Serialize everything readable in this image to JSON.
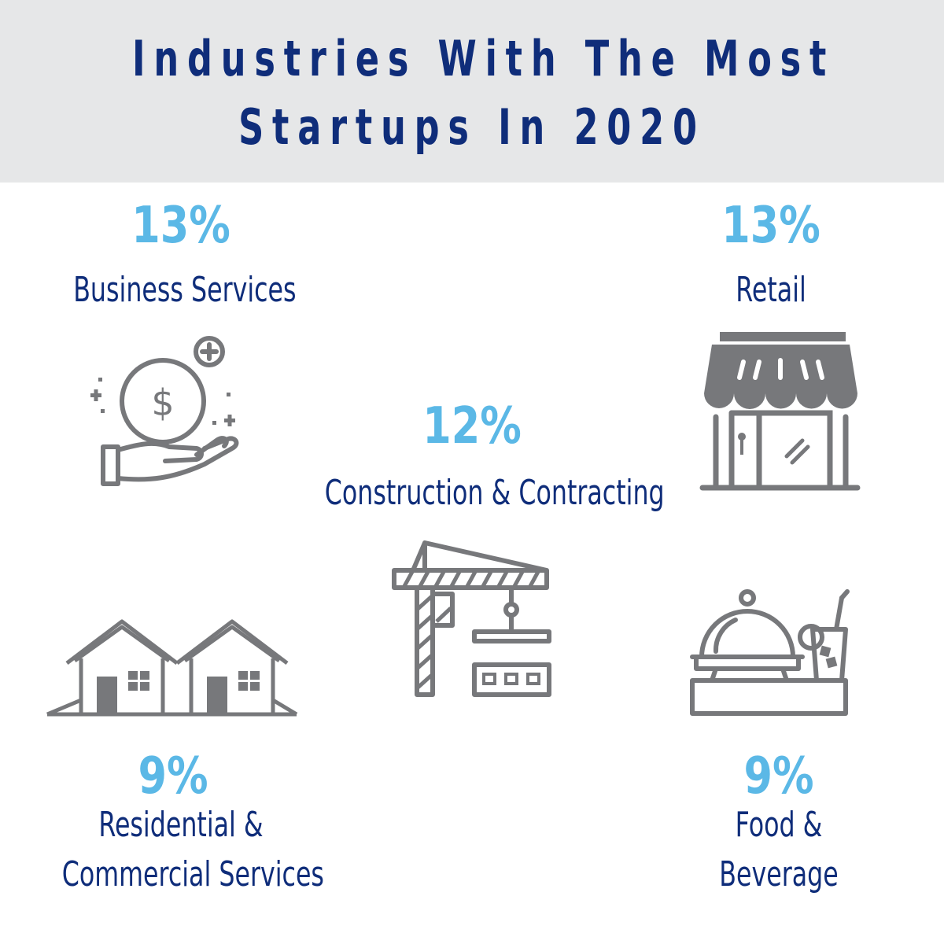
{
  "title": {
    "line1": "Industries With The Most",
    "line2": "Startups In 2020"
  },
  "colors": {
    "header_bg": "#e6e7e8",
    "title": "#0f2d7a",
    "percent": "#5bb8e6",
    "label": "#0f2d7a",
    "icon": "#77787b"
  },
  "items": [
    {
      "percent": "13%",
      "label": "Business Services",
      "icon": "hand-coin-icon"
    },
    {
      "percent": "13%",
      "label": "Retail",
      "icon": "storefront-icon"
    },
    {
      "percent": "12%",
      "label": "Construction & Contracting",
      "icon": "crane-icon"
    },
    {
      "percent": "9%",
      "label_line1": "Residential &",
      "label_line2": "Commercial Services",
      "icon": "houses-icon"
    },
    {
      "percent": "9%",
      "label_line1": "Food &",
      "label_line2": "Beverage",
      "icon": "food-cloche-icon"
    }
  ]
}
